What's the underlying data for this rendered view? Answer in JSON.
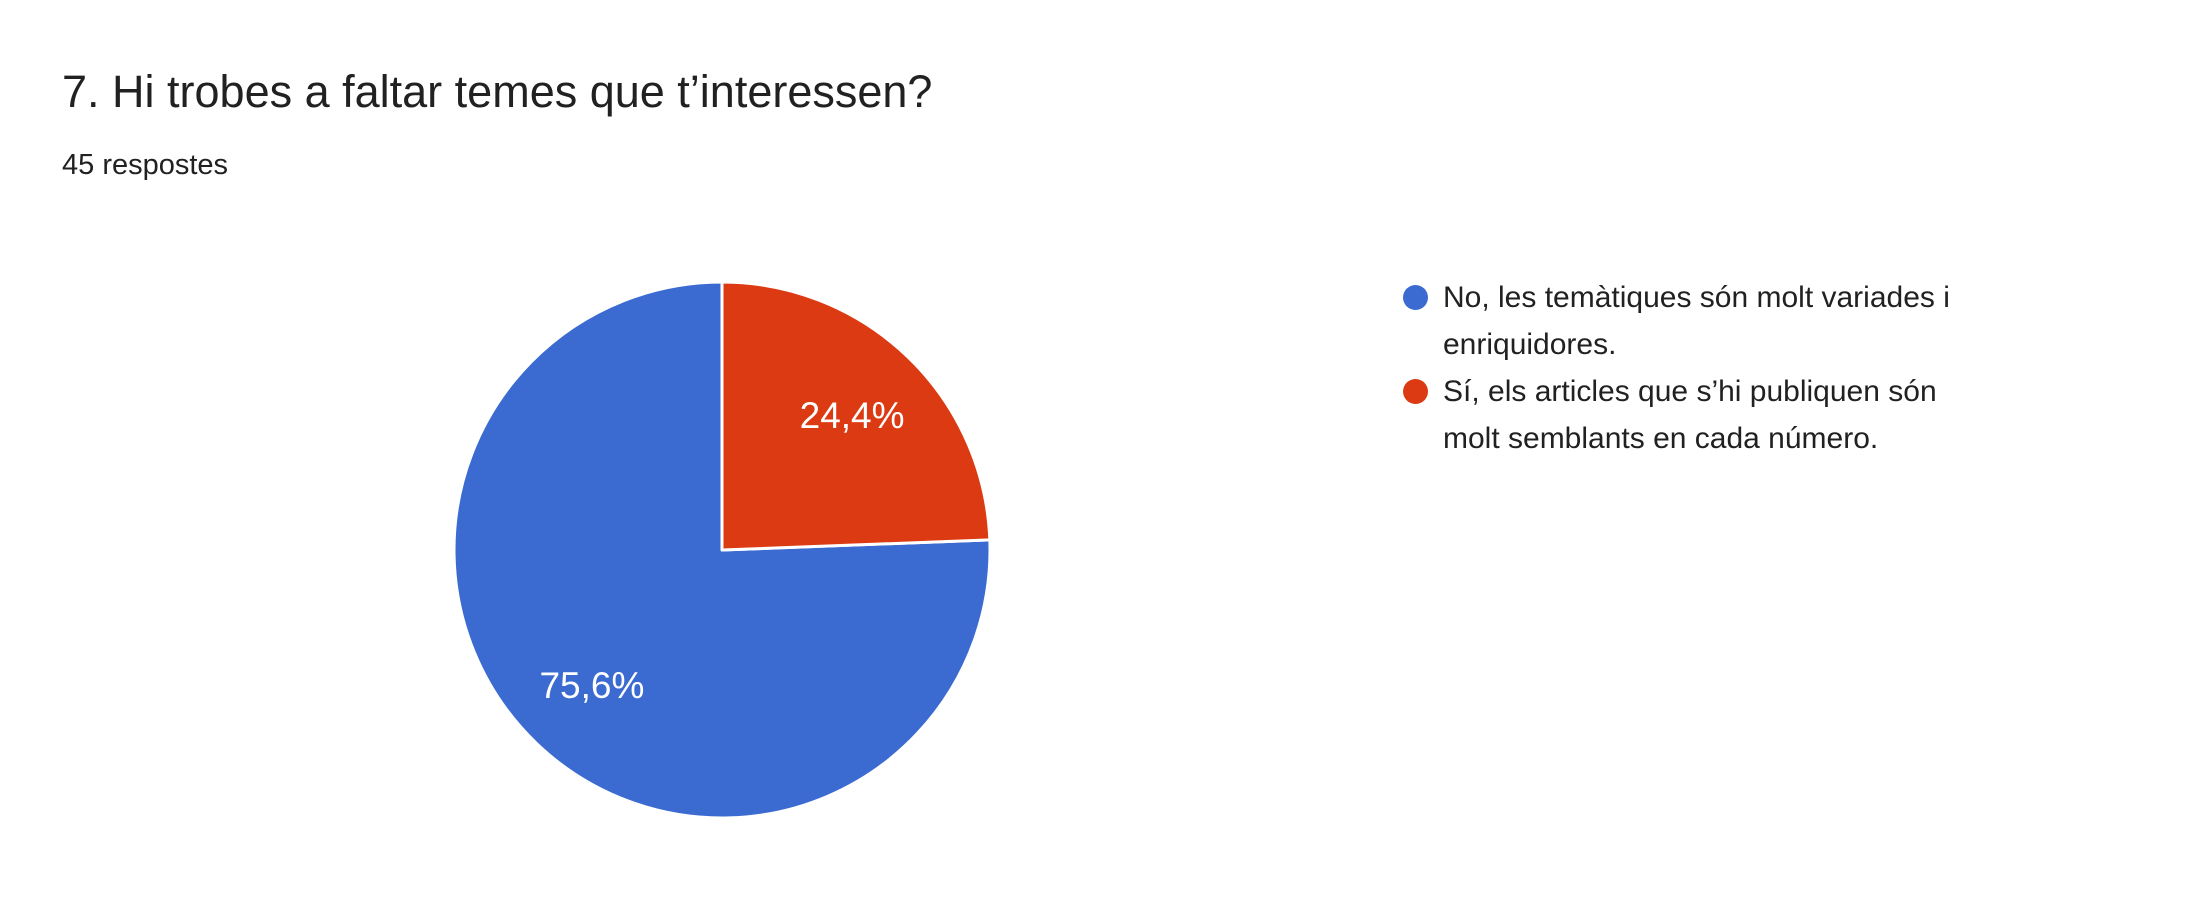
{
  "page": {
    "title": "7. Hi trobes a faltar temes que t’interessen?",
    "responses_label": "45 respostes"
  },
  "chart_data": {
    "type": "pie",
    "title": "7. Hi trobes a faltar temes que t’interessen?",
    "subtitle": "45 respostes",
    "responses_count": 45,
    "categories": [
      "No, les temàtiques són molt variades i enriquidores.",
      "Sí, els articles que s’hi publiquen són molt semblants en cada número."
    ],
    "values": [
      75.6,
      24.4
    ],
    "value_labels": [
      "75,6%",
      "24,4%"
    ],
    "colors": [
      "#3B6BD1",
      "#DC3A12"
    ],
    "slice_label_color": "#FFFFFF",
    "start_angle": "top",
    "direction": "counterclockwise",
    "legend_position": "right",
    "background": "#FFFFFF"
  },
  "legend": {
    "items": [
      {
        "label": "No, les temàtiques són molt variades i enriquidores.",
        "lines": [
          "No, les temàtiques són molt variades i",
          "enriquidores."
        ],
        "color": "#3B6BD1"
      },
      {
        "label": "Sí, els articles que s’hi publiquen són molt semblants en cada número.",
        "lines": [
          "Sí, els articles que s’hi publiquen són",
          "molt semblants en cada número."
        ],
        "color": "#DC3A12"
      }
    ]
  }
}
